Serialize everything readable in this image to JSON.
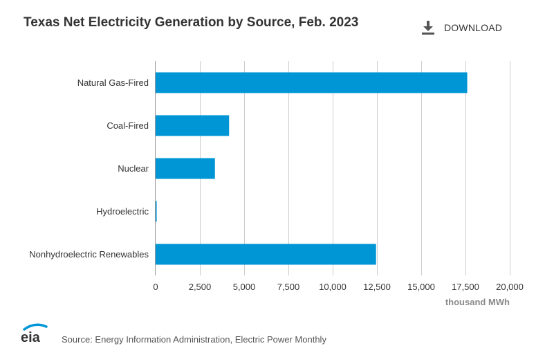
{
  "header": {
    "title": "Texas Net Electricity Generation by Source, Feb. 2023",
    "download_label": "DOWNLOAD"
  },
  "footer": {
    "logo_text": "eia",
    "source": "Source: Energy Information Administration, Electric Power Monthly"
  },
  "colors": {
    "bar": "#0096d6",
    "grid": "#cccccc",
    "axis_text": "#333333",
    "unit_text": "#8a8a8a"
  },
  "chart_data": {
    "type": "bar",
    "orientation": "horizontal",
    "title": "Texas Net Electricity Generation by Source, Feb. 2023",
    "categories": [
      "Natural Gas-Fired",
      "Coal-Fired",
      "Nuclear",
      "Hydroelectric",
      "Nonhydroelectric Renewables"
    ],
    "values": [
      17600,
      4150,
      3350,
      60,
      12450
    ],
    "xlabel": "thousand MWh",
    "ylabel": "",
    "xlim": [
      0,
      20000
    ],
    "xticks": [
      0,
      2500,
      5000,
      7500,
      10000,
      12500,
      15000,
      17500,
      20000
    ],
    "xtick_labels": [
      "0",
      "2,500",
      "5,000",
      "7,500",
      "10,000",
      "12,500",
      "15,000",
      "17,500",
      "20,000"
    ],
    "grid": true,
    "legend": "none"
  }
}
